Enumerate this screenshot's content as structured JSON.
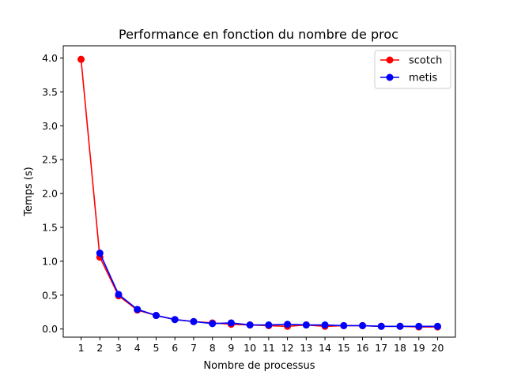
{
  "chart_data": {
    "type": "line",
    "title": "Performance en fonction du nombre de proc",
    "xlabel": "Nombre de processus",
    "ylabel": "Temps (s)",
    "x": [
      1,
      2,
      3,
      4,
      5,
      6,
      7,
      8,
      9,
      10,
      11,
      12,
      13,
      14,
      15,
      16,
      17,
      18,
      19,
      20
    ],
    "xticks": [
      "1",
      "2",
      "3",
      "4",
      "5",
      "6",
      "7",
      "8",
      "9",
      "10",
      "11",
      "12",
      "13",
      "14",
      "15",
      "16",
      "17",
      "18",
      "19",
      "20"
    ],
    "yticks": [
      "0.0",
      "0.5",
      "1.0",
      "1.5",
      "2.0",
      "2.5",
      "3.0",
      "3.5",
      "4.0"
    ],
    "ylim": [
      -0.12,
      4.18
    ],
    "xlim": [
      0.05,
      20.95
    ],
    "grid": false,
    "legend_position": "top-right",
    "series": [
      {
        "name": "scotch",
        "color": "#ff0000",
        "x": [
          1,
          2,
          3,
          4,
          5,
          6,
          7,
          8,
          9,
          10,
          11,
          12,
          13,
          14,
          15,
          16,
          17,
          18,
          19,
          20
        ],
        "values": [
          3.98,
          1.06,
          0.49,
          0.28,
          0.2,
          0.14,
          0.11,
          0.09,
          0.07,
          0.06,
          0.05,
          0.04,
          0.06,
          0.04,
          0.05,
          0.05,
          0.04,
          0.04,
          0.03,
          0.03
        ]
      },
      {
        "name": "metis",
        "color": "#0000ff",
        "x": [
          2,
          3,
          4,
          5,
          6,
          7,
          8,
          9,
          10,
          11,
          12,
          13,
          14,
          15,
          16,
          17,
          18,
          19,
          20
        ],
        "values": [
          1.12,
          0.51,
          0.29,
          0.2,
          0.14,
          0.11,
          0.08,
          0.09,
          0.06,
          0.06,
          0.07,
          0.06,
          0.06,
          0.05,
          0.05,
          0.04,
          0.04,
          0.04,
          0.04
        ]
      }
    ]
  }
}
